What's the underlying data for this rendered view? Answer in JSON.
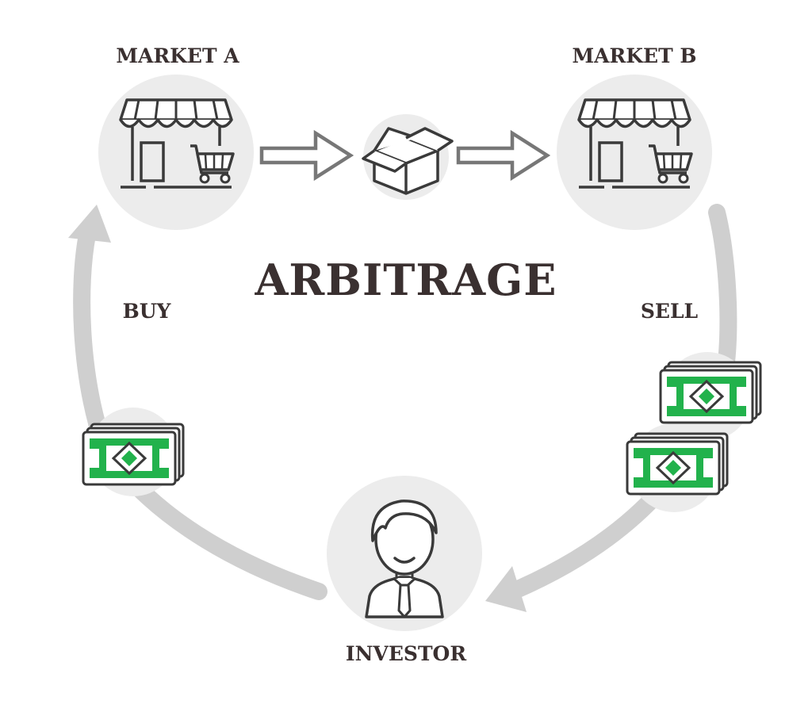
{
  "title": "ARBITRAGE",
  "nodes": {
    "market_a": "MARKET A",
    "market_b": "MARKET B",
    "investor": "INVESTOR"
  },
  "edges": {
    "buy": "BUY",
    "sell": "SELL"
  },
  "colors": {
    "line": "#3a3a3a",
    "circle_bg": "#ececec",
    "cycle_arrow": "#cfcfcf",
    "money_green": "#22b24c",
    "text": "#3a3030"
  },
  "icons": [
    "store-icon",
    "package-box-icon",
    "cash-stack-icon",
    "investor-person-icon",
    "right-arrow-icon"
  ]
}
